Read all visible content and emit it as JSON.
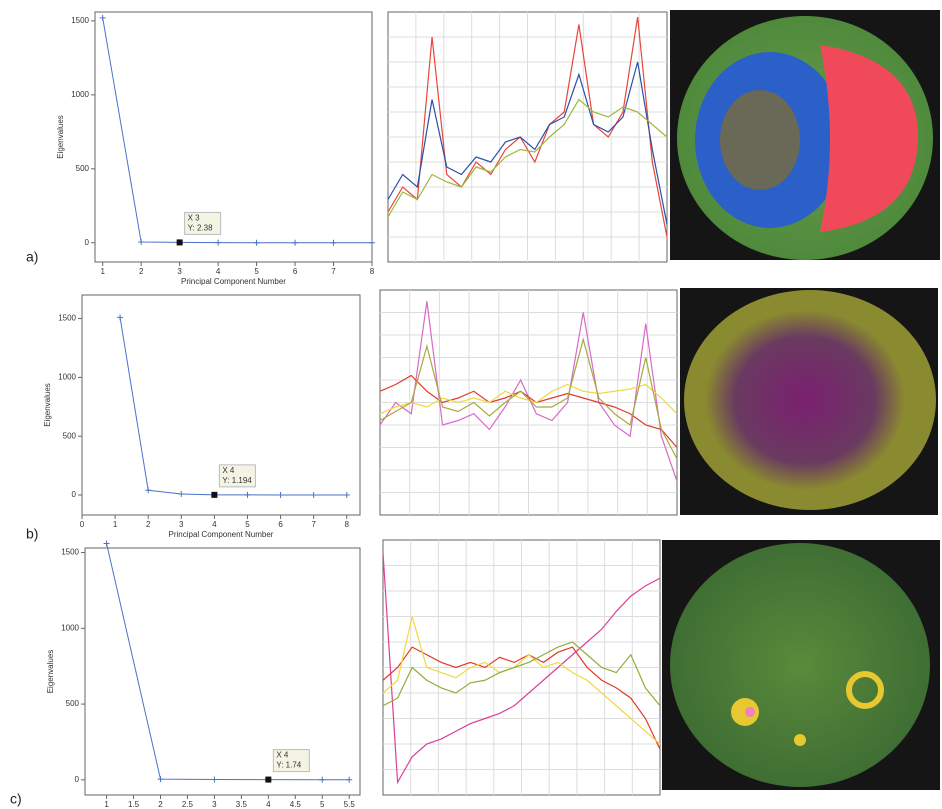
{
  "chart_data": [
    {
      "type": "line",
      "panel_label": "a)",
      "xlabel": "Principal Component Number",
      "ylabel": "Eigenvalues",
      "color": "#4a72c8",
      "x": [
        1,
        2,
        3,
        4,
        5,
        6,
        7,
        8
      ],
      "values": [
        1520,
        5,
        2.38,
        1,
        0.5,
        0.3,
        0.2,
        0.1
      ],
      "xlim": [
        0.8,
        8
      ],
      "ylim": [
        -130,
        1560
      ],
      "xticks": [
        1,
        2,
        3,
        4,
        5,
        6,
        7,
        8
      ],
      "yticks": [
        0,
        500,
        1000,
        1500
      ],
      "annotation": {
        "x": 3,
        "y": 2.38,
        "label": [
          "X 3",
          "Y: 2.38"
        ]
      }
    },
    {
      "type": "line",
      "ylim": [
        0,
        100
      ],
      "series": [
        {
          "color": "#e8463a",
          "values": [
            20,
            30,
            25,
            90,
            35,
            30,
            40,
            35,
            45,
            50,
            40,
            55,
            60,
            95,
            55,
            50,
            60,
            98,
            40,
            10
          ]
        },
        {
          "color": "#2a4fa8",
          "values": [
            25,
            35,
            30,
            65,
            38,
            35,
            42,
            40,
            48,
            50,
            45,
            55,
            58,
            75,
            55,
            52,
            58,
            80,
            45,
            15
          ]
        },
        {
          "color": "#9ab83a",
          "values": [
            18,
            28,
            25,
            35,
            32,
            30,
            38,
            36,
            42,
            45,
            44,
            50,
            55,
            65,
            60,
            58,
            62,
            60,
            55,
            50
          ]
        }
      ]
    },
    {
      "type": "line",
      "xlabel": "Principal Component Number",
      "ylabel": "Eigenvalues",
      "panel_label": "b)",
      "color": "#4a72c8",
      "x": [
        1.15,
        2,
        3,
        4,
        5,
        6,
        7,
        8
      ],
      "values": [
        1510,
        40,
        8,
        1.194,
        1,
        0.5,
        0.3,
        0.2
      ],
      "xlim": [
        0,
        8.4
      ],
      "ylim": [
        -170,
        1700
      ],
      "xticks": [
        0,
        1,
        2,
        3,
        4,
        5,
        6,
        7,
        8
      ],
      "yticks": [
        0,
        500,
        1000,
        1500
      ],
      "annotation": {
        "x": 4,
        "y": 1.194,
        "label": [
          "X 4",
          "Y: 1.194"
        ]
      }
    },
    {
      "type": "line",
      "ylim": [
        0,
        100
      ],
      "series": [
        {
          "color": "#d86ac8",
          "values": [
            40,
            50,
            45,
            95,
            40,
            42,
            45,
            38,
            48,
            60,
            45,
            42,
            50,
            90,
            50,
            40,
            35,
            85,
            35,
            15
          ]
        },
        {
          "color": "#e03a2a",
          "values": [
            55,
            58,
            62,
            55,
            50,
            52,
            55,
            50,
            52,
            55,
            50,
            52,
            54,
            52,
            50,
            48,
            45,
            40,
            38,
            30
          ]
        },
        {
          "color": "#f0d840",
          "values": [
            45,
            48,
            50,
            48,
            52,
            50,
            52,
            50,
            55,
            52,
            50,
            55,
            58,
            55,
            54,
            55,
            56,
            58,
            52,
            45
          ]
        },
        {
          "color": "#a8a840",
          "values": [
            42,
            46,
            50,
            75,
            48,
            46,
            50,
            44,
            50,
            55,
            48,
            48,
            52,
            78,
            52,
            45,
            40,
            70,
            38,
            25
          ]
        }
      ]
    },
    {
      "type": "line",
      "xlabel": "Principal Component Number",
      "ylabel": "Eigenvalues",
      "panel_label": "c)",
      "color": "#4a72c8",
      "x": [
        1,
        2,
        3,
        4,
        5,
        5.5
      ],
      "values": [
        1560,
        5,
        2,
        1.74,
        1,
        0.8
      ],
      "xlim": [
        0.6,
        5.7
      ],
      "ylim": [
        -100,
        1530
      ],
      "xticks": [
        1,
        1.5,
        2,
        2.5,
        3,
        3.5,
        4,
        4.5,
        5,
        5.5
      ],
      "yticks": [
        0,
        500,
        1000,
        1500
      ],
      "annotation": {
        "x": 4,
        "y": 1.74,
        "label": [
          "X 4",
          "Y: 1.74"
        ]
      }
    },
    {
      "type": "line",
      "ylim": [
        0,
        100
      ],
      "series": [
        {
          "color": "#d8409a",
          "values": [
            95,
            5,
            15,
            20,
            22,
            25,
            28,
            30,
            32,
            35,
            40,
            45,
            50,
            55,
            60,
            65,
            72,
            78,
            82,
            85
          ]
        },
        {
          "color": "#e03a2a",
          "values": [
            45,
            50,
            58,
            55,
            52,
            50,
            52,
            50,
            54,
            52,
            55,
            52,
            56,
            58,
            50,
            45,
            42,
            38,
            30,
            18
          ]
        },
        {
          "color": "#f0d840",
          "values": [
            40,
            45,
            70,
            50,
            48,
            46,
            50,
            52,
            48,
            50,
            55,
            50,
            52,
            48,
            45,
            40,
            35,
            30,
            25,
            20
          ]
        },
        {
          "color": "#8fae3a",
          "values": [
            35,
            38,
            50,
            45,
            42,
            40,
            44,
            45,
            48,
            50,
            52,
            55,
            58,
            60,
            55,
            50,
            48,
            55,
            42,
            35
          ]
        }
      ]
    }
  ]
}
